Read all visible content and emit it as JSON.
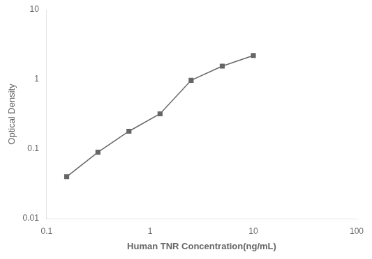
{
  "chart_data": {
    "type": "line",
    "x": [
      0.156,
      0.313,
      0.625,
      1.25,
      2.5,
      5.0,
      10.0
    ],
    "series": [
      {
        "values": [
          0.04,
          0.09,
          0.18,
          0.32,
          0.97,
          1.55,
          2.2
        ],
        "color": "#666666",
        "marker": "square",
        "line_style": "solid"
      }
    ],
    "x_label": "Human TNR Concentration(ng/mL)",
    "y_label": "Optical Density",
    "log": true,
    "xlim": [
      0.1,
      100
    ],
    "ylim": [
      0.01,
      10
    ],
    "xticks": [
      0.1,
      1,
      10,
      100
    ],
    "yticks": [
      0.01,
      0.1,
      1,
      10
    ],
    "grid": false
  }
}
